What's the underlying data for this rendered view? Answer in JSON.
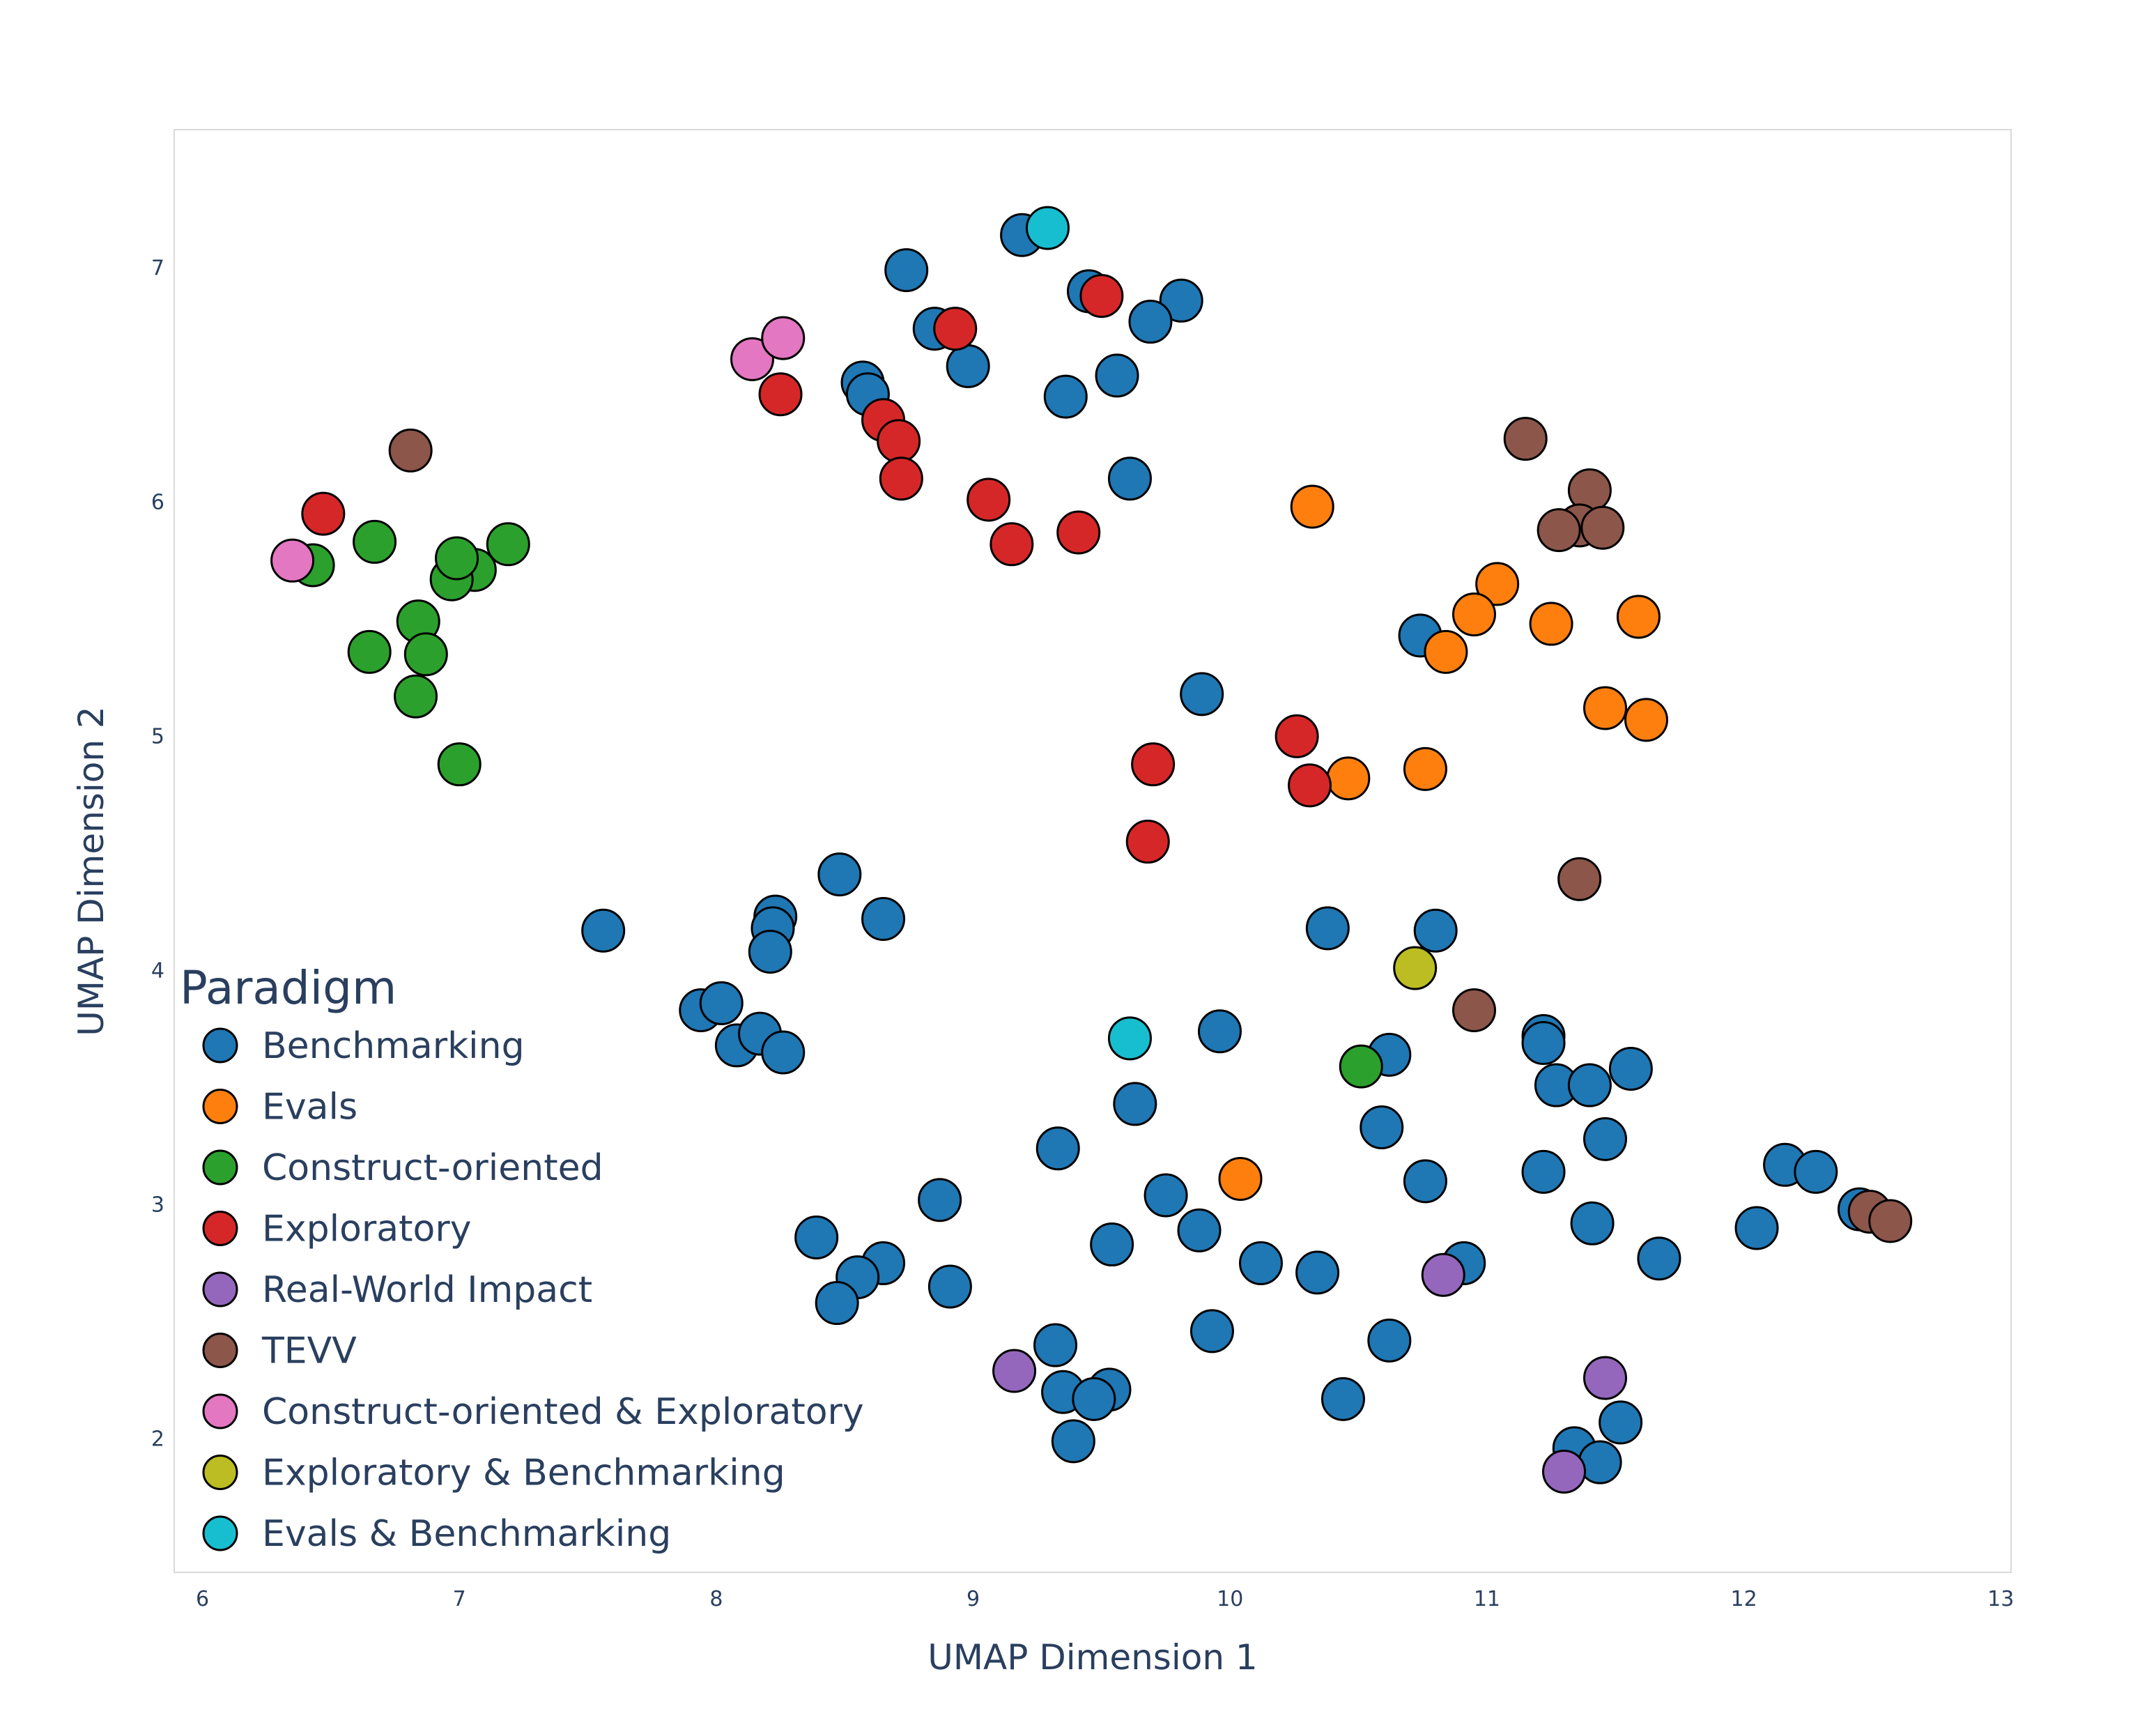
{
  "chart_data": {
    "type": "scatter",
    "title": "",
    "xlabel": "UMAP Dimension 1",
    "ylabel": "UMAP Dimension 2",
    "xlim": [
      5.89,
      13.04
    ],
    "ylim": [
      1.43,
      7.59
    ],
    "xticks": [
      6,
      7,
      8,
      9,
      10,
      11,
      12,
      13
    ],
    "yticks": [
      2,
      3,
      4,
      5,
      6,
      7
    ],
    "grid": false,
    "legend": {
      "title": "Paradigm",
      "placement": "bottom-left inside"
    },
    "series": [
      {
        "name": "Benchmarking",
        "color": "#1f77b4",
        "points": [
          [
            9.19,
            7.14
          ],
          [
            8.74,
            6.99
          ],
          [
            9.45,
            6.9
          ],
          [
            9.81,
            6.86
          ],
          [
            9.69,
            6.77
          ],
          [
            8.85,
            6.74
          ],
          [
            8.98,
            6.58
          ],
          [
            8.57,
            6.51
          ],
          [
            8.59,
            6.46
          ],
          [
            9.56,
            6.54
          ],
          [
            9.36,
            6.45
          ],
          [
            9.61,
            6.1
          ],
          [
            9.89,
            5.18
          ],
          [
            10.74,
            5.43
          ],
          [
            8.48,
            4.41
          ],
          [
            8.65,
            4.22
          ],
          [
            7.56,
            4.17
          ],
          [
            8.23,
            4.23
          ],
          [
            8.22,
            4.18
          ],
          [
            8.21,
            4.08
          ],
          [
            7.94,
            3.83
          ],
          [
            8.02,
            3.86
          ],
          [
            8.08,
            3.68
          ],
          [
            8.17,
            3.73
          ],
          [
            8.26,
            3.65
          ],
          [
            10.38,
            4.18
          ],
          [
            10.8,
            4.17
          ],
          [
            9.96,
            3.74
          ],
          [
            11.22,
            3.72
          ],
          [
            11.22,
            3.69
          ],
          [
            10.62,
            3.64
          ],
          [
            11.27,
            3.51
          ],
          [
            11.4,
            3.51
          ],
          [
            11.56,
            3.58
          ],
          [
            9.63,
            3.43
          ],
          [
            10.59,
            3.33
          ],
          [
            11.46,
            3.28
          ],
          [
            9.33,
            3.24
          ],
          [
            11.22,
            3.14
          ],
          [
            10.76,
            3.1
          ],
          [
            12.16,
            3.17
          ],
          [
            12.28,
            3.14
          ],
          [
            12.45,
            2.98
          ],
          [
            8.87,
            3.02
          ],
          [
            9.75,
            3.04
          ],
          [
            8.39,
            2.86
          ],
          [
            9.88,
            2.89
          ],
          [
            11.41,
            2.92
          ],
          [
            12.05,
            2.9
          ],
          [
            9.54,
            2.83
          ],
          [
            8.65,
            2.75
          ],
          [
            8.55,
            2.69
          ],
          [
            8.47,
            2.58
          ],
          [
            8.91,
            2.65
          ],
          [
            10.12,
            2.75
          ],
          [
            10.34,
            2.71
          ],
          [
            10.91,
            2.75
          ],
          [
            11.67,
            2.77
          ],
          [
            9.93,
            2.46
          ],
          [
            10.62,
            2.42
          ],
          [
            9.32,
            2.4
          ],
          [
            9.35,
            2.2
          ],
          [
            9.53,
            2.21
          ],
          [
            9.47,
            2.17
          ],
          [
            9.39,
            1.99
          ],
          [
            10.44,
            2.17
          ],
          [
            11.34,
            1.96
          ],
          [
            11.52,
            2.07
          ],
          [
            11.44,
            1.9
          ]
        ]
      },
      {
        "name": "Evals",
        "color": "#ff7f0e",
        "points": [
          [
            10.32,
            5.98
          ],
          [
            11.04,
            5.65
          ],
          [
            10.95,
            5.52
          ],
          [
            11.25,
            5.48
          ],
          [
            11.59,
            5.51
          ],
          [
            10.84,
            5.36
          ],
          [
            11.46,
            5.12
          ],
          [
            11.62,
            5.07
          ],
          [
            10.46,
            4.82
          ],
          [
            10.76,
            4.86
          ],
          [
            10.04,
            3.11
          ]
        ]
      },
      {
        "name": "Construct-oriented",
        "color": "#2ca02c",
        "points": [
          [
            6.43,
            5.73
          ],
          [
            6.67,
            5.83
          ],
          [
            7.19,
            5.82
          ],
          [
            7.06,
            5.71
          ],
          [
            6.97,
            5.67
          ],
          [
            6.99,
            5.76
          ],
          [
            6.84,
            5.49
          ],
          [
            6.65,
            5.36
          ],
          [
            6.87,
            5.35
          ],
          [
            6.83,
            5.17
          ],
          [
            7.0,
            4.88
          ],
          [
            10.51,
            3.59
          ]
        ]
      },
      {
        "name": "Exploratory",
        "color": "#d62728",
        "points": [
          [
            9.5,
            6.88
          ],
          [
            8.93,
            6.74
          ],
          [
            8.25,
            6.46
          ],
          [
            8.65,
            6.35
          ],
          [
            8.71,
            6.26
          ],
          [
            8.72,
            6.1
          ],
          [
            9.06,
            6.01
          ],
          [
            9.15,
            5.82
          ],
          [
            9.41,
            5.87
          ],
          [
            6.47,
            5.95
          ],
          [
            10.26,
            5.0
          ],
          [
            9.7,
            4.88
          ],
          [
            10.31,
            4.79
          ],
          [
            9.68,
            4.55
          ]
        ]
      },
      {
        "name": "Real-World Impact",
        "color": "#9467bd",
        "points": [
          [
            10.83,
            2.7
          ],
          [
            9.16,
            2.29
          ],
          [
            11.46,
            2.26
          ],
          [
            11.3,
            1.86
          ]
        ]
      },
      {
        "name": "TEVV",
        "color": "#8c564b",
        "points": [
          [
            6.81,
            6.22
          ],
          [
            11.15,
            6.27
          ],
          [
            11.4,
            6.05
          ],
          [
            11.36,
            5.9
          ],
          [
            11.28,
            5.88
          ],
          [
            11.45,
            5.89
          ],
          [
            11.36,
            4.39
          ],
          [
            10.95,
            3.83
          ],
          [
            12.49,
            2.97
          ],
          [
            12.57,
            2.93
          ]
        ]
      },
      {
        "name": "Construct-oriented & Exploratory",
        "color": "#e377c2",
        "points": [
          [
            8.14,
            6.61
          ],
          [
            8.26,
            6.7
          ],
          [
            6.35,
            5.75
          ]
        ]
      },
      {
        "name": "Exploratory & Benchmarking",
        "color": "#bcbd22",
        "points": [
          [
            10.72,
            4.01
          ]
        ]
      },
      {
        "name": "Evals & Benchmarking",
        "color": "#17becf",
        "points": [
          [
            9.29,
            7.17
          ],
          [
            9.61,
            3.71
          ]
        ]
      }
    ]
  }
}
